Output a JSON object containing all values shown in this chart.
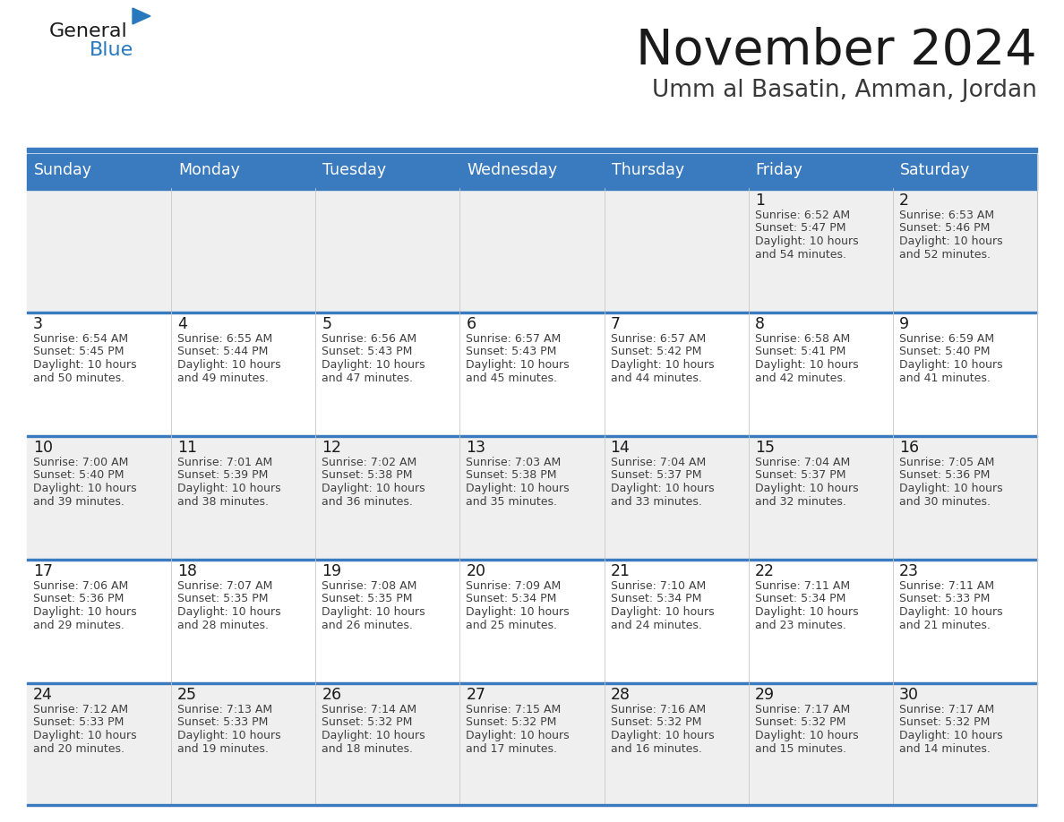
{
  "title": "November 2024",
  "subtitle": "Umm al Basatin, Amman, Jordan",
  "days_of_week": [
    "Sunday",
    "Monday",
    "Tuesday",
    "Wednesday",
    "Thursday",
    "Friday",
    "Saturday"
  ],
  "header_bg": "#3a7abf",
  "header_text": "#ffffff",
  "cell_bg_even": "#efefef",
  "cell_bg_odd": "#ffffff",
  "cell_border_blue": "#3a7abf",
  "cell_border_light": "#c8c8c8",
  "day_num_color": "#1a1a1a",
  "cell_text_color": "#404040",
  "title_color": "#1a1a1a",
  "subtitle_color": "#3a3a3a",
  "logo_general_color": "#1a1a1a",
  "logo_blue_color": "#2878be",
  "weeks": [
    [
      {
        "day": "",
        "sunrise": "",
        "sunset": "",
        "daylight": ""
      },
      {
        "day": "",
        "sunrise": "",
        "sunset": "",
        "daylight": ""
      },
      {
        "day": "",
        "sunrise": "",
        "sunset": "",
        "daylight": ""
      },
      {
        "day": "",
        "sunrise": "",
        "sunset": "",
        "daylight": ""
      },
      {
        "day": "",
        "sunrise": "",
        "sunset": "",
        "daylight": ""
      },
      {
        "day": "1",
        "sunrise": "6:52 AM",
        "sunset": "5:47 PM",
        "daylight": "10 hours and 54 minutes."
      },
      {
        "day": "2",
        "sunrise": "6:53 AM",
        "sunset": "5:46 PM",
        "daylight": "10 hours and 52 minutes."
      }
    ],
    [
      {
        "day": "3",
        "sunrise": "6:54 AM",
        "sunset": "5:45 PM",
        "daylight": "10 hours and 50 minutes."
      },
      {
        "day": "4",
        "sunrise": "6:55 AM",
        "sunset": "5:44 PM",
        "daylight": "10 hours and 49 minutes."
      },
      {
        "day": "5",
        "sunrise": "6:56 AM",
        "sunset": "5:43 PM",
        "daylight": "10 hours and 47 minutes."
      },
      {
        "day": "6",
        "sunrise": "6:57 AM",
        "sunset": "5:43 PM",
        "daylight": "10 hours and 45 minutes."
      },
      {
        "day": "7",
        "sunrise": "6:57 AM",
        "sunset": "5:42 PM",
        "daylight": "10 hours and 44 minutes."
      },
      {
        "day": "8",
        "sunrise": "6:58 AM",
        "sunset": "5:41 PM",
        "daylight": "10 hours and 42 minutes."
      },
      {
        "day": "9",
        "sunrise": "6:59 AM",
        "sunset": "5:40 PM",
        "daylight": "10 hours and 41 minutes."
      }
    ],
    [
      {
        "day": "10",
        "sunrise": "7:00 AM",
        "sunset": "5:40 PM",
        "daylight": "10 hours and 39 minutes."
      },
      {
        "day": "11",
        "sunrise": "7:01 AM",
        "sunset": "5:39 PM",
        "daylight": "10 hours and 38 minutes."
      },
      {
        "day": "12",
        "sunrise": "7:02 AM",
        "sunset": "5:38 PM",
        "daylight": "10 hours and 36 minutes."
      },
      {
        "day": "13",
        "sunrise": "7:03 AM",
        "sunset": "5:38 PM",
        "daylight": "10 hours and 35 minutes."
      },
      {
        "day": "14",
        "sunrise": "7:04 AM",
        "sunset": "5:37 PM",
        "daylight": "10 hours and 33 minutes."
      },
      {
        "day": "15",
        "sunrise": "7:04 AM",
        "sunset": "5:37 PM",
        "daylight": "10 hours and 32 minutes."
      },
      {
        "day": "16",
        "sunrise": "7:05 AM",
        "sunset": "5:36 PM",
        "daylight": "10 hours and 30 minutes."
      }
    ],
    [
      {
        "day": "17",
        "sunrise": "7:06 AM",
        "sunset": "5:36 PM",
        "daylight": "10 hours and 29 minutes."
      },
      {
        "day": "18",
        "sunrise": "7:07 AM",
        "sunset": "5:35 PM",
        "daylight": "10 hours and 28 minutes."
      },
      {
        "day": "19",
        "sunrise": "7:08 AM",
        "sunset": "5:35 PM",
        "daylight": "10 hours and 26 minutes."
      },
      {
        "day": "20",
        "sunrise": "7:09 AM",
        "sunset": "5:34 PM",
        "daylight": "10 hours and 25 minutes."
      },
      {
        "day": "21",
        "sunrise": "7:10 AM",
        "sunset": "5:34 PM",
        "daylight": "10 hours and 24 minutes."
      },
      {
        "day": "22",
        "sunrise": "7:11 AM",
        "sunset": "5:34 PM",
        "daylight": "10 hours and 23 minutes."
      },
      {
        "day": "23",
        "sunrise": "7:11 AM",
        "sunset": "5:33 PM",
        "daylight": "10 hours and 21 minutes."
      }
    ],
    [
      {
        "day": "24",
        "sunrise": "7:12 AM",
        "sunset": "5:33 PM",
        "daylight": "10 hours and 20 minutes."
      },
      {
        "day": "25",
        "sunrise": "7:13 AM",
        "sunset": "5:33 PM",
        "daylight": "10 hours and 19 minutes."
      },
      {
        "day": "26",
        "sunrise": "7:14 AM",
        "sunset": "5:32 PM",
        "daylight": "10 hours and 18 minutes."
      },
      {
        "day": "27",
        "sunrise": "7:15 AM",
        "sunset": "5:32 PM",
        "daylight": "10 hours and 17 minutes."
      },
      {
        "day": "28",
        "sunrise": "7:16 AM",
        "sunset": "5:32 PM",
        "daylight": "10 hours and 16 minutes."
      },
      {
        "day": "29",
        "sunrise": "7:17 AM",
        "sunset": "5:32 PM",
        "daylight": "10 hours and 15 minutes."
      },
      {
        "day": "30",
        "sunrise": "7:17 AM",
        "sunset": "5:32 PM",
        "daylight": "10 hours and 14 minutes."
      }
    ]
  ]
}
